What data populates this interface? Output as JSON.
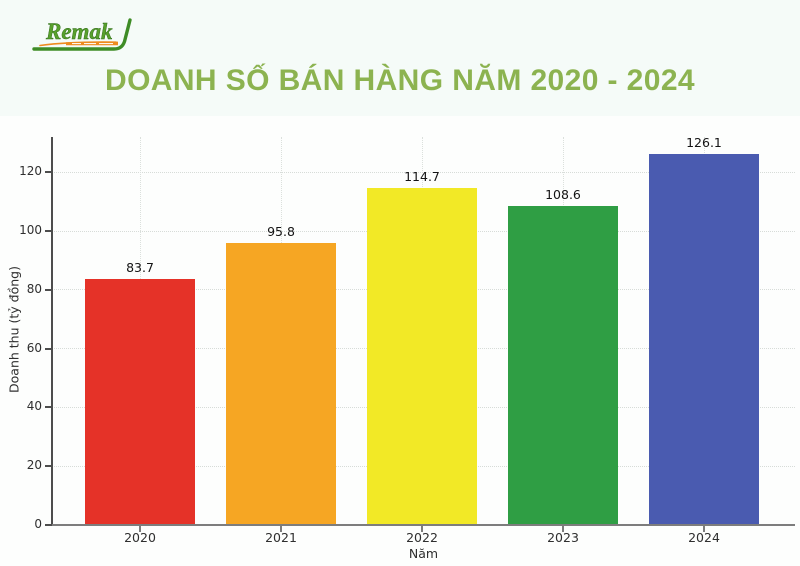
{
  "page": {
    "background_color": "#f5fbf8",
    "figure_background_color": "#fdfefd"
  },
  "logo": {
    "text": "Remak",
    "text_color": "#58a02c",
    "swoosh_color": "#3e8c26",
    "underline_color": "#ee8b1e"
  },
  "header": {
    "title": "DOANH SỐ BÁN HÀNG NĂM 2020 - 2024",
    "title_color": "#8cb350"
  },
  "chart_data": {
    "type": "bar",
    "title": "DOANH SỐ BÁN HÀNG NĂM 2020 - 2024",
    "categories": [
      "2020",
      "2021",
      "2022",
      "2023",
      "2024"
    ],
    "values": [
      83.7,
      95.8,
      114.7,
      108.6,
      126.1
    ],
    "value_labels": [
      "83.7",
      "95.8",
      "114.7",
      "108.6",
      "126.1"
    ],
    "bar_colors": [
      "#e53228",
      "#f6a623",
      "#f2e926",
      "#2f9e44",
      "#4a5bb0"
    ],
    "xlabel": "Năm",
    "ylabel": "Doanh thu (tỷ đồng)",
    "y_ticks": [
      0,
      20,
      40,
      60,
      80,
      100,
      120
    ],
    "ylim": [
      0,
      132
    ],
    "grid": "dotted horizontal and vertical",
    "legend": "none"
  }
}
